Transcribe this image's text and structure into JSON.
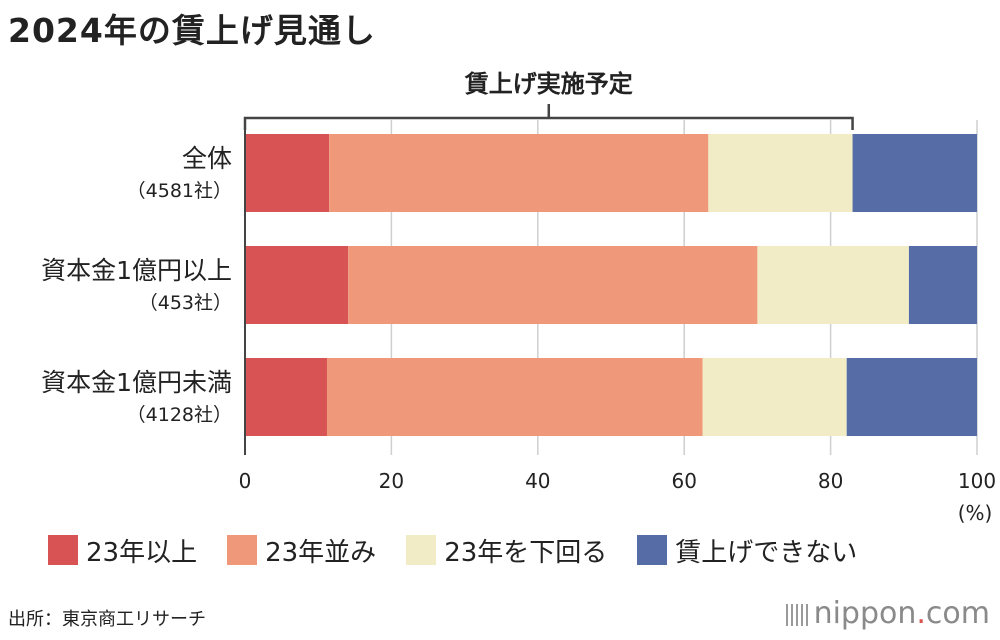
{
  "title": "2024年の賃上げ見通し",
  "chart_data": {
    "type": "bar",
    "orientation": "horizontal",
    "stacked": true,
    "categories": [
      "全体",
      "資本金1億円以上",
      "資本金1億円未満"
    ],
    "category_counts": [
      "（4581社）",
      "（453社）",
      "（4128社）"
    ],
    "series": [
      {
        "name": "23年以上",
        "color": "#d85454",
        "values": [
          11.5,
          14.1,
          11.2
        ]
      },
      {
        "name": "23年並み",
        "color": "#f0997a",
        "values": [
          51.8,
          55.9,
          51.3
        ]
      },
      {
        "name": "23年を下回る",
        "color": "#f1ecc6",
        "values": [
          19.7,
          20.7,
          19.7
        ]
      },
      {
        "name": "賃上げできない",
        "color": "#566ca6",
        "values": [
          17.0,
          9.3,
          17.8
        ]
      }
    ],
    "xlim": [
      0,
      100
    ],
    "xticks": [
      "0",
      "20",
      "40",
      "60",
      "80",
      "100"
    ],
    "xunit": "(%)",
    "grid": true,
    "bracket_label": "賃上げ実施予定",
    "bracket_range": [
      0,
      83
    ]
  },
  "source": "出所：東京商工リサーチ",
  "brand": {
    "prefix": "nippon",
    "dot": ".",
    "suffix": "com"
  }
}
